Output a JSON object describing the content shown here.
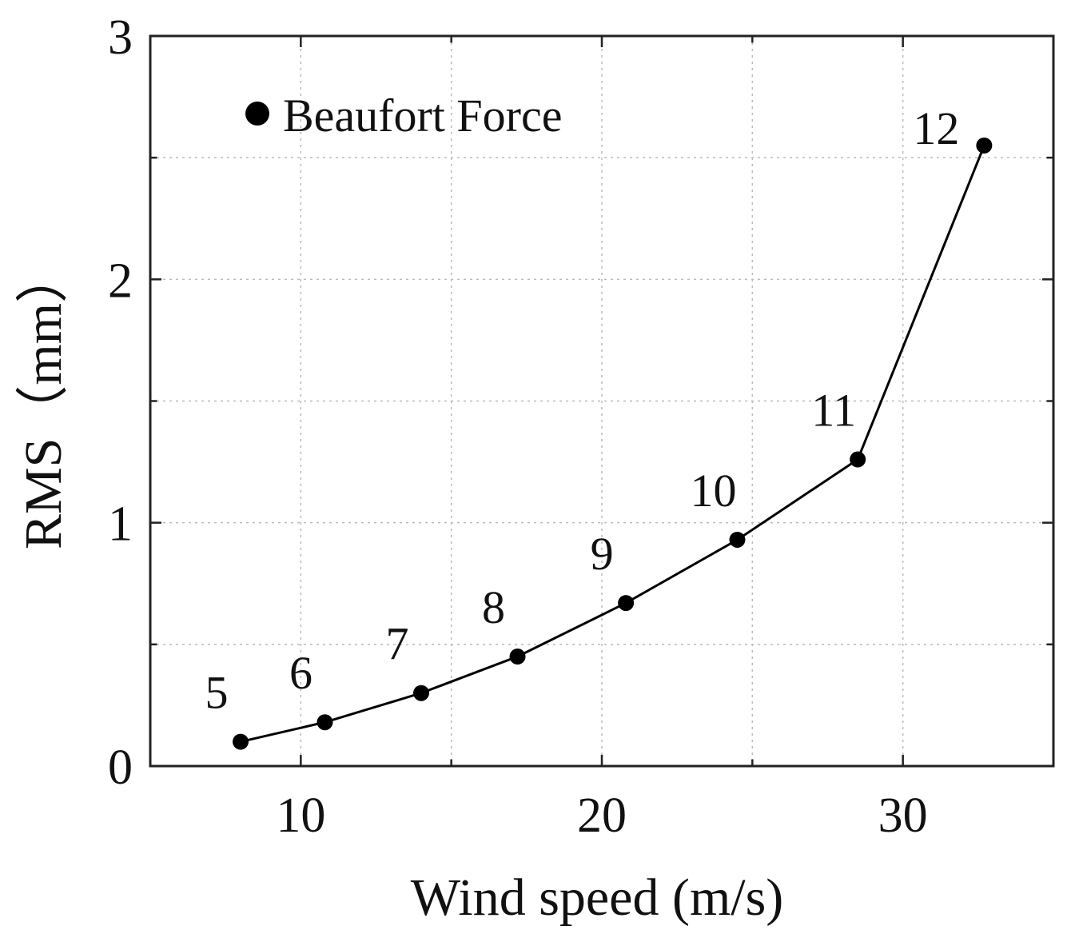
{
  "chart_data": {
    "type": "line",
    "xlabel": "Wind speed (m/s)",
    "ylabel": "RMS（mm）",
    "xlim": [
      5,
      35
    ],
    "ylim": [
      0,
      3
    ],
    "xticks": [
      10,
      20,
      30
    ],
    "xtick_labels": [
      "10",
      "20",
      "30"
    ],
    "yticks": [
      0,
      1,
      2,
      3
    ],
    "ytick_labels": [
      "0",
      "1",
      "2",
      "3"
    ],
    "grid": true,
    "legend_position": "top-left",
    "marker": "circle",
    "color": "#000000",
    "series": [
      {
        "name": "Beaufort Force",
        "x": [
          8.0,
          10.8,
          14.0,
          17.2,
          20.8,
          24.5,
          28.5,
          32.7
        ],
        "y": [
          0.1,
          0.18,
          0.3,
          0.45,
          0.67,
          0.93,
          1.26,
          2.55
        ],
        "labels": [
          "5",
          "6",
          "7",
          "8",
          "9",
          "10",
          "11",
          "12"
        ]
      }
    ]
  }
}
